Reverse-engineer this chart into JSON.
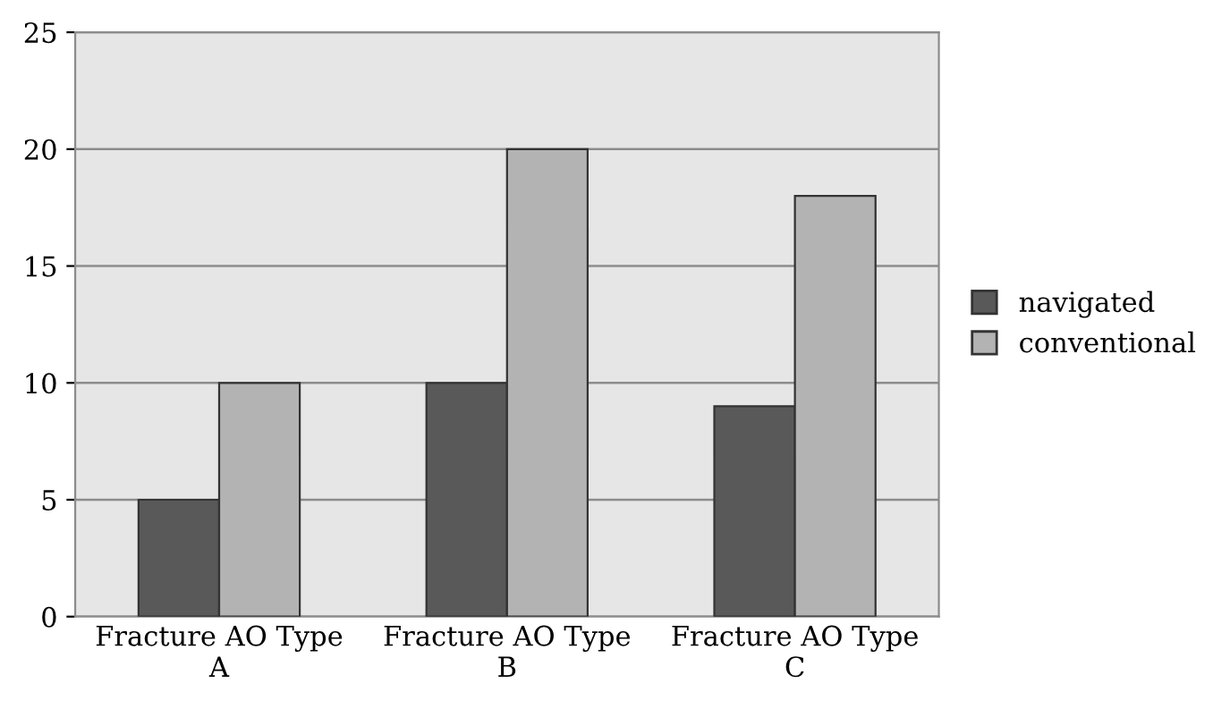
{
  "chart_data": {
    "type": "bar",
    "categories": [
      "Fracture AO Type\nA",
      "Fracture AO Type\nB",
      "Fracture AO Type\nC"
    ],
    "series": [
      {
        "name": "navigated",
        "color": "#595959",
        "values": [
          5,
          10,
          9
        ]
      },
      {
        "name": "conventional",
        "color": "#b3b3b3",
        "values": [
          10,
          20,
          18
        ]
      }
    ],
    "ylim": [
      0,
      25
    ],
    "yticks": [
      0,
      5,
      10,
      15,
      20,
      25
    ],
    "grid": "y",
    "legend": "right"
  }
}
